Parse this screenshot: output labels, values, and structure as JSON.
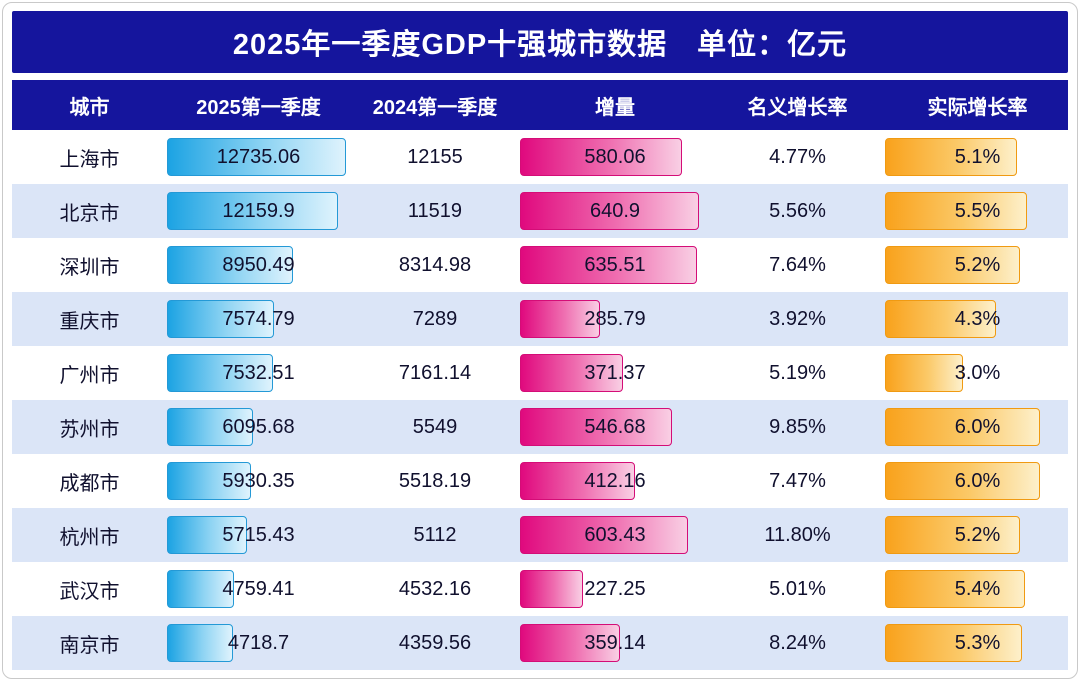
{
  "title_bar": "2025年一季度GDP十强城市数据　单位：亿元",
  "colors": {
    "header_bg": "#15159d",
    "alt_row_bg": "#dbe5f7",
    "gdp_bar_color": "#1ca3e3",
    "increment_bar_color": "#e0097e",
    "growth_bar_color": "#f9a21c",
    "text": "#10102e"
  },
  "chart_data": {
    "type": "table",
    "title": "2025年一季度GDP十强城市数据",
    "unit": "亿元",
    "columns": [
      "城市",
      "2025第一季度",
      "2024第一季度",
      "增量",
      "名义增长率",
      "实际增长率"
    ],
    "bar_columns": [
      "2025第一季度",
      "增量",
      "实际增长率"
    ],
    "bar_max": {
      "gdp_2025": 12735.06,
      "increment": 640.9,
      "real_growth": 6.0
    },
    "rows": [
      {
        "city": "上海市",
        "gdp_2025": 12735.06,
        "gdp_2025_label": "12735.06",
        "gdp_2024_label": "12155",
        "increment": 580.06,
        "increment_label": "580.06",
        "nominal_growth": "4.77%",
        "real_growth": 5.1,
        "real_growth_label": "5.1%"
      },
      {
        "city": "北京市",
        "gdp_2025": 12159.9,
        "gdp_2025_label": "12159.9",
        "gdp_2024_label": "11519",
        "increment": 640.9,
        "increment_label": "640.9",
        "nominal_growth": "5.56%",
        "real_growth": 5.5,
        "real_growth_label": "5.5%"
      },
      {
        "city": "深圳市",
        "gdp_2025": 8950.49,
        "gdp_2025_label": "8950.49",
        "gdp_2024_label": "8314.98",
        "increment": 635.51,
        "increment_label": "635.51",
        "nominal_growth": "7.64%",
        "real_growth": 5.2,
        "real_growth_label": "5.2%"
      },
      {
        "city": "重庆市",
        "gdp_2025": 7574.79,
        "gdp_2025_label": "7574.79",
        "gdp_2024_label": "7289",
        "increment": 285.79,
        "increment_label": "285.79",
        "nominal_growth": "3.92%",
        "real_growth": 4.3,
        "real_growth_label": "4.3%"
      },
      {
        "city": "广州市",
        "gdp_2025": 7532.51,
        "gdp_2025_label": "7532.51",
        "gdp_2024_label": "7161.14",
        "increment": 371.37,
        "increment_label": "371.37",
        "nominal_growth": "5.19%",
        "real_growth": 3.0,
        "real_growth_label": "3.0%"
      },
      {
        "city": "苏州市",
        "gdp_2025": 6095.68,
        "gdp_2025_label": "6095.68",
        "gdp_2024_label": "5549",
        "increment": 546.68,
        "increment_label": "546.68",
        "nominal_growth": "9.85%",
        "real_growth": 6.0,
        "real_growth_label": "6.0%"
      },
      {
        "city": "成都市",
        "gdp_2025": 5930.35,
        "gdp_2025_label": "5930.35",
        "gdp_2024_label": "5518.19",
        "increment": 412.16,
        "increment_label": "412.16",
        "nominal_growth": "7.47%",
        "real_growth": 6.0,
        "real_growth_label": "6.0%"
      },
      {
        "city": "杭州市",
        "gdp_2025": 5715.43,
        "gdp_2025_label": "5715.43",
        "gdp_2024_label": "5112",
        "increment": 603.43,
        "increment_label": "603.43",
        "nominal_growth": "11.80%",
        "real_growth": 5.2,
        "real_growth_label": "5.2%"
      },
      {
        "city": "武汉市",
        "gdp_2025": 4759.41,
        "gdp_2025_label": "4759.41",
        "gdp_2024_label": "4532.16",
        "increment": 227.25,
        "increment_label": "227.25",
        "nominal_growth": "5.01%",
        "real_growth": 5.4,
        "real_growth_label": "5.4%"
      },
      {
        "city": "南京市",
        "gdp_2025": 4718.7,
        "gdp_2025_label": "4718.7",
        "gdp_2024_label": "4359.56",
        "increment": 359.14,
        "increment_label": "359.14",
        "nominal_growth": "8.24%",
        "real_growth": 5.3,
        "real_growth_label": "5.3%"
      }
    ]
  }
}
